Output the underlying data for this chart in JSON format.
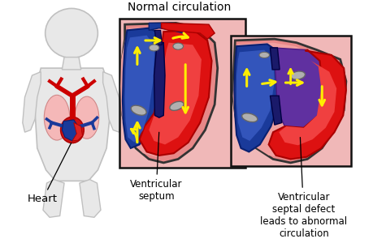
{
  "title": "Normal circulation",
  "label_heart": "Heart",
  "label_septum": "Ventricular\nseptum",
  "label_defect": "Ventricular\nseptal defect\nleads to abnormal\ncirculation",
  "bg_color": "#ffffff",
  "body_color": "#e8e8e8",
  "body_outline": "#c0c0c0",
  "lung_color": "#f5b8b8",
  "lung_outline": "#d08888",
  "heart_red": "#dd1111",
  "heart_blue": "#1a3a9a",
  "heart_dark_red": "#aa0000",
  "heart_dark_blue": "#0a2070",
  "arrow_color": "#ffee00",
  "box_bg": "#f0b8b8",
  "box_border": "#111111",
  "purple_color": "#6030a0",
  "valve_color": "#b0b0b0",
  "septum_color": "#222222",
  "vessel_red": "#cc0000",
  "vessel_blue": "#0000cc",
  "figsize": [
    4.6,
    3.0
  ],
  "dpi": 100
}
